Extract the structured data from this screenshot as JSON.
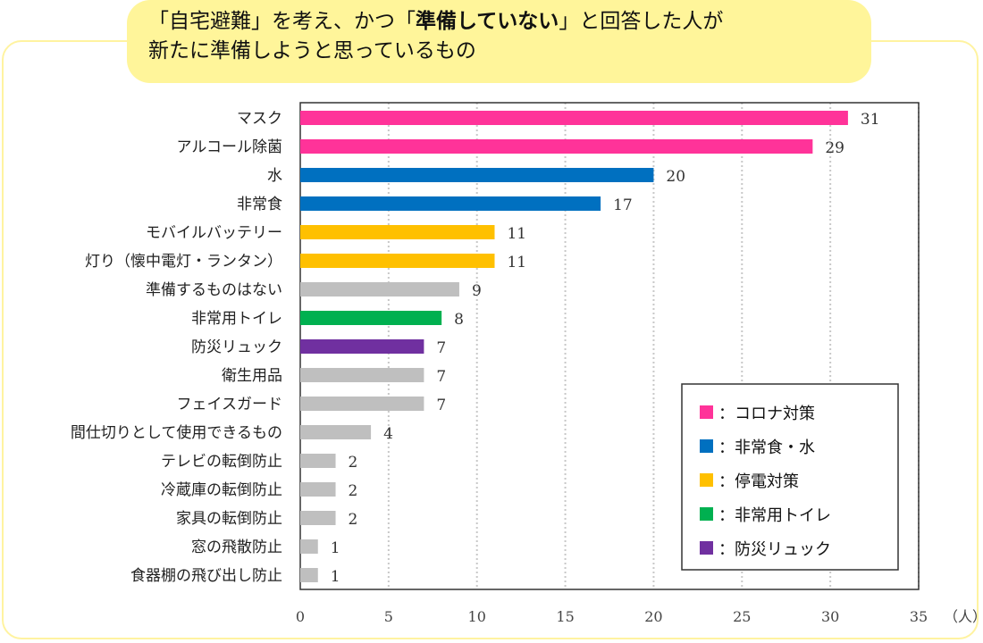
{
  "title": {
    "line1_pre": "「自宅避難」を考え、かつ「",
    "line1_bold": "準備していない",
    "line1_post": "」と回答した人が",
    "line2": "新たに準備しようと思っているもの"
  },
  "chart_data": {
    "type": "bar",
    "orientation": "horizontal",
    "categories": [
      "マスク",
      "アルコール除菌",
      "水",
      "非常食",
      "モバイルバッテリー",
      "灯り（懐中電灯・ランタン）",
      "準備するものはない",
      "非常用トイレ",
      "防災リュック",
      "衛生用品",
      "フェイスガード",
      "間仕切りとして使用できるもの",
      "テレビの転倒防止",
      "冷蔵庫の転倒防止",
      "家具の転倒防止",
      "窓の飛散防止",
      "食器棚の飛び出し防止"
    ],
    "values": [
      31,
      29,
      20,
      17,
      11,
      11,
      9,
      8,
      7,
      7,
      7,
      4,
      2,
      2,
      2,
      1,
      1
    ],
    "groups": [
      "corona",
      "corona",
      "food",
      "food",
      "power",
      "power",
      "other",
      "toilet",
      "bag",
      "other",
      "other",
      "other",
      "other",
      "other",
      "other",
      "other",
      "other"
    ],
    "group_colors": {
      "corona": "#FF3399",
      "food": "#0070C0",
      "power": "#FFC000",
      "toilet": "#00B050",
      "bag": "#7030A0",
      "other": "#BFBFBF"
    },
    "xlim": [
      0,
      35
    ],
    "xticks": [
      0,
      5,
      10,
      15,
      20,
      25,
      30,
      35
    ],
    "xunit": "（人）",
    "grid": "vertical dotted",
    "legend": {
      "placement": "bottom-right",
      "items": [
        {
          "group": "corona",
          "label": "：コロナ対策"
        },
        {
          "group": "food",
          "label": "：非常食・水"
        },
        {
          "group": "power",
          "label": "：停電対策"
        },
        {
          "group": "toilet",
          "label": "：非常用トイレ"
        },
        {
          "group": "bag",
          "label": "：防災リュック"
        }
      ]
    }
  }
}
